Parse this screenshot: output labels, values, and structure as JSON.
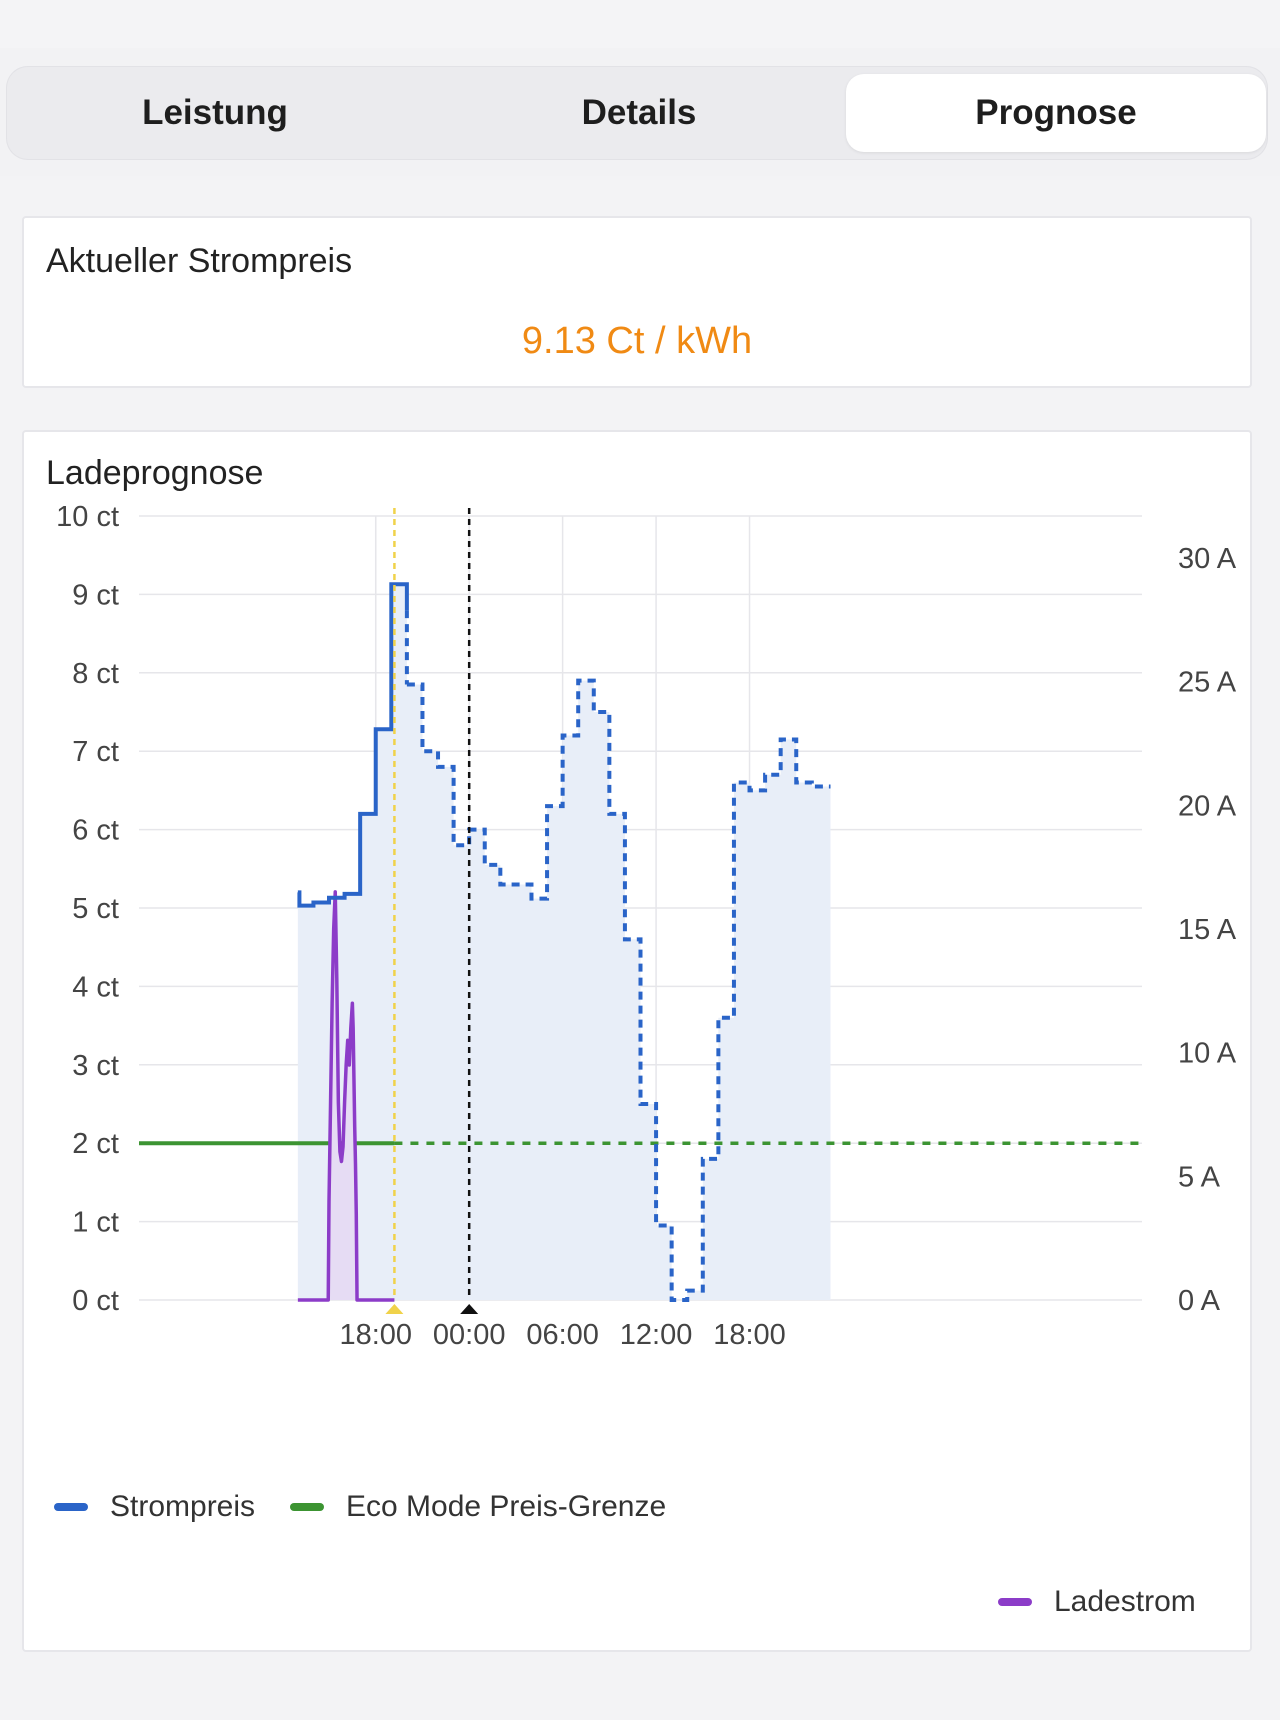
{
  "tabs": [
    {
      "label": "Leistung",
      "active": false
    },
    {
      "label": "Details",
      "active": false
    },
    {
      "label": "Prognose",
      "active": true
    }
  ],
  "price_card": {
    "title": "Aktueller Strompreis",
    "value": "9.13 Ct / kWh",
    "value_color": "#f08a14"
  },
  "forecast_card": {
    "title": "Ladeprognose"
  },
  "legend": {
    "strompreis": "Strompreis",
    "eco": "Eco Mode Preis-Grenze",
    "ladestrom": "Ladestrom"
  },
  "colors": {
    "strompreis": "#2a64c8",
    "eco": "#3c9432",
    "ladestrom": "#8c3cc8",
    "now_marker": "#f0d24a",
    "midnight_marker": "#111111"
  },
  "chart_data": {
    "type": "line",
    "x_unit": "hours since 00:00 of the first day",
    "x_range": [
      -21.2,
      43.2
    ],
    "x_ticks": [
      {
        "x": -6,
        "label": "18:00"
      },
      {
        "x": 0,
        "label": "00:00"
      },
      {
        "x": 6,
        "label": "06:00"
      },
      {
        "x": 12,
        "label": "12:00"
      },
      {
        "x": 18,
        "label": "18:00"
      }
    ],
    "y_left": {
      "range": [
        0,
        10
      ],
      "ticks": [
        "0 ct",
        "1 ct",
        "2 ct",
        "3 ct",
        "4 ct",
        "5 ct",
        "6 ct",
        "7 ct",
        "8 ct",
        "9 ct",
        "10 ct"
      ]
    },
    "y_right": {
      "range": [
        0,
        31.7
      ],
      "ticks": [
        {
          "v": 0,
          "label": "0 A"
        },
        {
          "v": 5,
          "label": "5 A"
        },
        {
          "v": 10,
          "label": "10 A"
        },
        {
          "v": 15,
          "label": "15 A"
        },
        {
          "v": 20,
          "label": "20 A"
        },
        {
          "v": 25,
          "label": "25 A"
        },
        {
          "v": 30,
          "label": "30 A"
        }
      ]
    },
    "now_x": -4.8,
    "midnight_x": 0,
    "eco_limit": 2.0,
    "series": [
      {
        "name": "Strompreis",
        "axis": "left",
        "step": true,
        "past": [
          [
            -11.0,
            5.2
          ],
          [
            -10.9,
            5.03
          ],
          [
            -10.0,
            5.07
          ],
          [
            -9.0,
            5.13
          ],
          [
            -8.0,
            5.18
          ],
          [
            -7.0,
            6.2
          ],
          [
            -6.0,
            7.28
          ],
          [
            -5.0,
            9.13
          ],
          [
            -4.0,
            8.8
          ]
        ],
        "future": [
          [
            -4.0,
            7.85
          ],
          [
            -3.0,
            7.0
          ],
          [
            -2.0,
            6.8
          ],
          [
            -1.0,
            5.8
          ],
          [
            0.0,
            6.0
          ],
          [
            1.0,
            5.55
          ],
          [
            2.0,
            5.3
          ],
          [
            3.0,
            5.3
          ],
          [
            4.0,
            5.12
          ],
          [
            5.0,
            6.3
          ],
          [
            6.0,
            7.2
          ],
          [
            7.0,
            7.9
          ],
          [
            8.0,
            7.5
          ],
          [
            9.0,
            6.2
          ],
          [
            10.0,
            4.6
          ],
          [
            11.0,
            2.5
          ],
          [
            12.0,
            0.95
          ],
          [
            13.0,
            0.0
          ],
          [
            14.0,
            0.12
          ],
          [
            15.0,
            1.8
          ],
          [
            16.0,
            3.6
          ],
          [
            17.0,
            6.6
          ],
          [
            18.0,
            6.5
          ],
          [
            19.0,
            6.7
          ],
          [
            20.0,
            7.15
          ],
          [
            21.0,
            6.6
          ],
          [
            22.0,
            6.55
          ]
        ],
        "future_end": 22.0
      },
      {
        "name": "Eco Mode Preis-Grenze",
        "axis": "left",
        "value": 2.0
      },
      {
        "name": "Ladestrom",
        "axis": "right",
        "points": [
          [
            -11.0,
            0
          ],
          [
            -9.05,
            0
          ],
          [
            -9.0,
            4
          ],
          [
            -8.9,
            8
          ],
          [
            -8.8,
            12
          ],
          [
            -8.7,
            15
          ],
          [
            -8.6,
            16.5
          ],
          [
            -8.5,
            13
          ],
          [
            -8.4,
            8
          ],
          [
            -8.3,
            6
          ],
          [
            -8.2,
            5.6
          ],
          [
            -8.1,
            6.2
          ],
          [
            -8.0,
            8
          ],
          [
            -7.9,
            9.5
          ],
          [
            -7.8,
            10.5
          ],
          [
            -7.7,
            9.5
          ],
          [
            -7.6,
            11
          ],
          [
            -7.5,
            12
          ],
          [
            -7.45,
            11
          ],
          [
            -7.4,
            9
          ],
          [
            -7.35,
            7
          ],
          [
            -7.3,
            5.5
          ],
          [
            -7.25,
            3.5
          ],
          [
            -7.2,
            0
          ],
          [
            -6.2,
            0
          ],
          [
            -4.8,
            0
          ]
        ]
      }
    ]
  }
}
